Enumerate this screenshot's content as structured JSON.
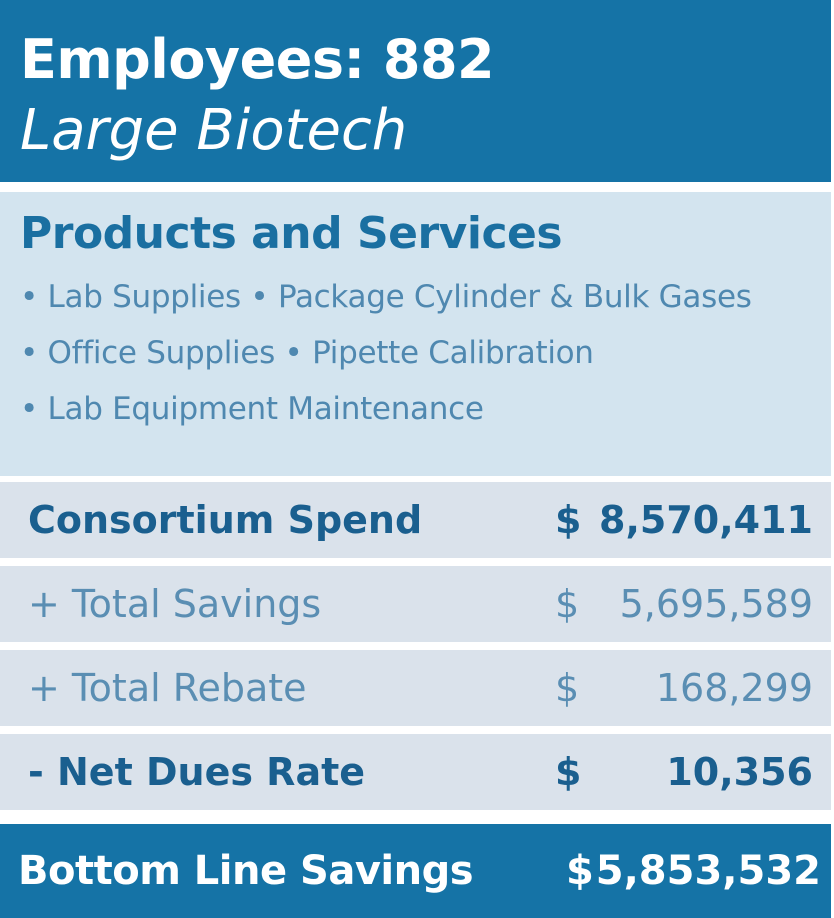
{
  "header": {
    "employees": "Employees: 882",
    "company_type": "Large Biotech"
  },
  "products": {
    "title": "Products and Services",
    "lines": [
      "• Lab Supplies • Package Cylinder & Bulk Gases",
      "• Office Supplies • Pipette Calibration",
      "• Lab Equipment Maintenance"
    ]
  },
  "rows": [
    {
      "label": "Consortium Spend",
      "currency": "$",
      "amount": "8,570,411"
    },
    {
      "label": "+ Total Savings",
      "currency": "$",
      "amount": "5,695,589"
    },
    {
      "label": "+ Total Rebate",
      "currency": "$",
      "amount": "168,299"
    },
    {
      "label": "- Net Dues Rate",
      "currency": "$",
      "amount": "10,356"
    }
  ],
  "bottom_line": {
    "label": "Bottom Line Savings",
    "currency": "$",
    "amount": "5,853,532"
  },
  "colors": {
    "header_blue": "#1573a6",
    "products_bg": "#d3e4ef",
    "row_bg": "#dae2eb",
    "strong_text": "#1a5f8f",
    "light_text": "#5a8eb3"
  }
}
